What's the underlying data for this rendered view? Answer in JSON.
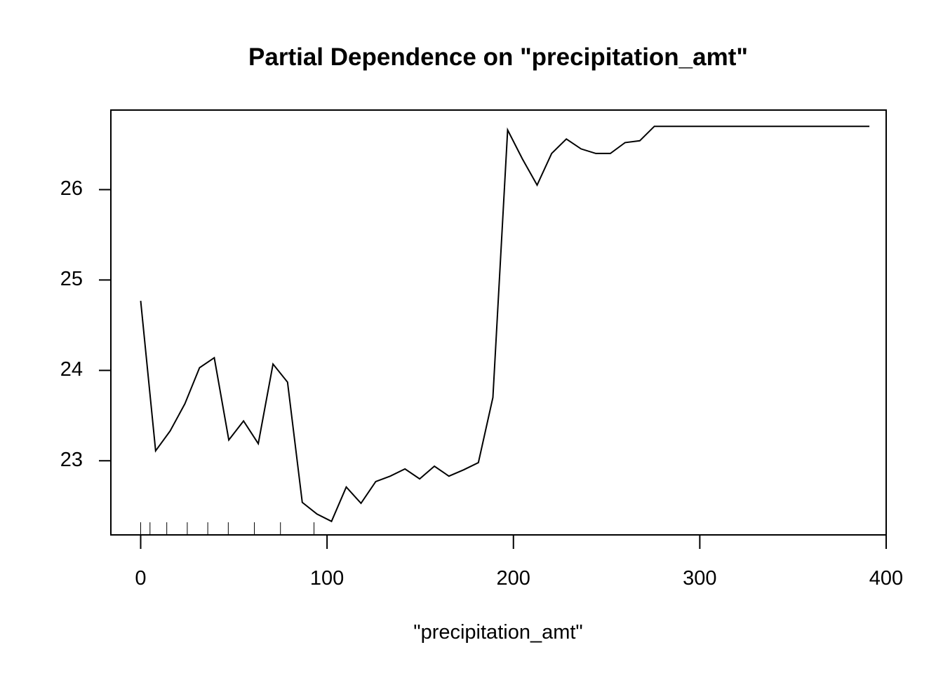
{
  "chart_data": {
    "type": "line",
    "title": "Partial Dependence on \"precipitation_amt\"",
    "xlabel": "\"precipitation_amt\"",
    "ylabel": "",
    "xlim": [
      -16,
      400
    ],
    "ylim": [
      22.18,
      26.88
    ],
    "xticks": [
      0,
      100,
      200,
      300,
      400
    ],
    "yticks": [
      23,
      24,
      25,
      26
    ],
    "xtick_labels": [
      "0",
      "100",
      "200",
      "300",
      "400"
    ],
    "ytick_labels": [
      "23",
      "24",
      "25",
      "26"
    ],
    "grid": false,
    "series": [
      {
        "x": [
          0,
          8,
          15.8,
          23.7,
          31.6,
          39.5,
          47.3,
          55.2,
          63.1,
          71,
          78.8,
          86.7,
          94.6,
          102.4,
          110.3,
          118.2,
          126.1,
          133.9,
          141.8,
          149.7,
          157.6,
          165.4,
          173.3,
          181.2,
          189,
          196.9,
          204.8,
          212.7,
          220.5,
          228.4,
          236.3,
          244.2,
          252,
          259.9,
          267.8,
          275.6,
          283.5,
          291.4,
          299.3,
          307.1,
          315,
          322.9,
          330.8,
          338.6,
          346.5,
          354.4,
          362.2,
          370.1,
          378,
          385.9,
          391
        ],
        "y": [
          24.77,
          23.11,
          23.33,
          23.63,
          24.03,
          24.14,
          23.23,
          23.44,
          23.19,
          24.07,
          23.87,
          22.54,
          22.41,
          22.33,
          22.71,
          22.53,
          22.77,
          22.83,
          22.91,
          22.8,
          22.94,
          22.83,
          22.9,
          22.98,
          23.7,
          26.66,
          26.34,
          26.05,
          26.4,
          26.56,
          26.45,
          26.4,
          26.4,
          26.52,
          26.54,
          26.7,
          26.7,
          26.7,
          26.7,
          26.7,
          26.7,
          26.7,
          26.7,
          26.7,
          26.7,
          26.7,
          26.7,
          26.7,
          26.7,
          26.7,
          26.7
        ]
      }
    ],
    "rug": [
      0,
      5,
      14,
      25,
      36,
      47,
      61,
      75,
      93
    ]
  }
}
